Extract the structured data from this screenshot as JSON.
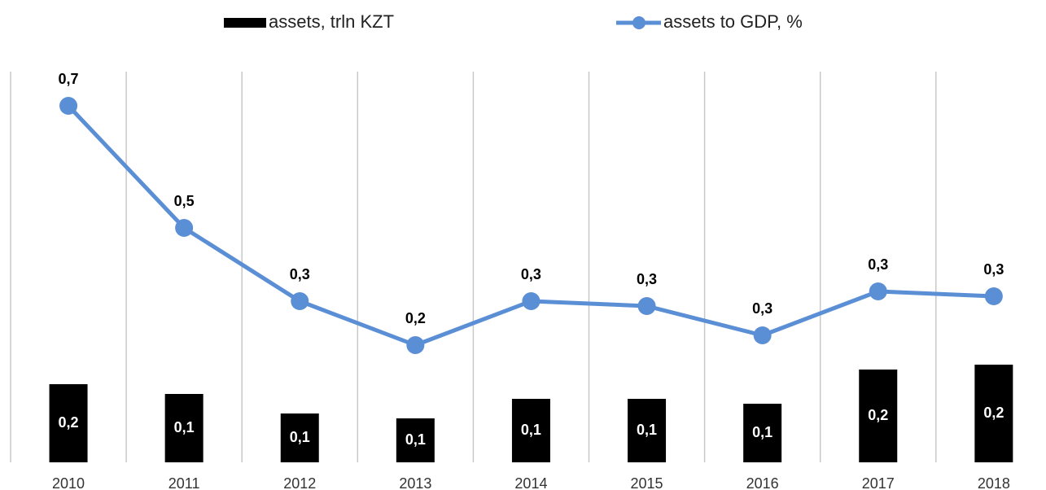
{
  "chart_data": {
    "type": "bar_line",
    "categories": [
      "2010",
      "2011",
      "2012",
      "2013",
      "2014",
      "2015",
      "2016",
      "2017",
      "2018"
    ],
    "ylim": [
      0,
      0.8
    ],
    "series": [
      {
        "name": "assets, trln KZT",
        "type": "bar",
        "color": "#000000",
        "values": [
          0.16,
          0.14,
          0.1,
          0.09,
          0.13,
          0.13,
          0.12,
          0.19,
          0.2
        ],
        "value_labels": [
          "0,2",
          "0,1",
          "0,1",
          "0,1",
          "0,1",
          "0,1",
          "0,1",
          "0,2",
          "0,2"
        ]
      },
      {
        "name": "assets to GDP, %",
        "type": "line",
        "color": "#5a8ed5",
        "values": [
          0.73,
          0.48,
          0.33,
          0.24,
          0.33,
          0.32,
          0.26,
          0.35,
          0.34
        ],
        "value_labels": [
          "0,7",
          "0,5",
          "0,3",
          "0,2",
          "0,3",
          "0,3",
          "0,3",
          "0,3",
          "0,3"
        ]
      }
    ]
  }
}
